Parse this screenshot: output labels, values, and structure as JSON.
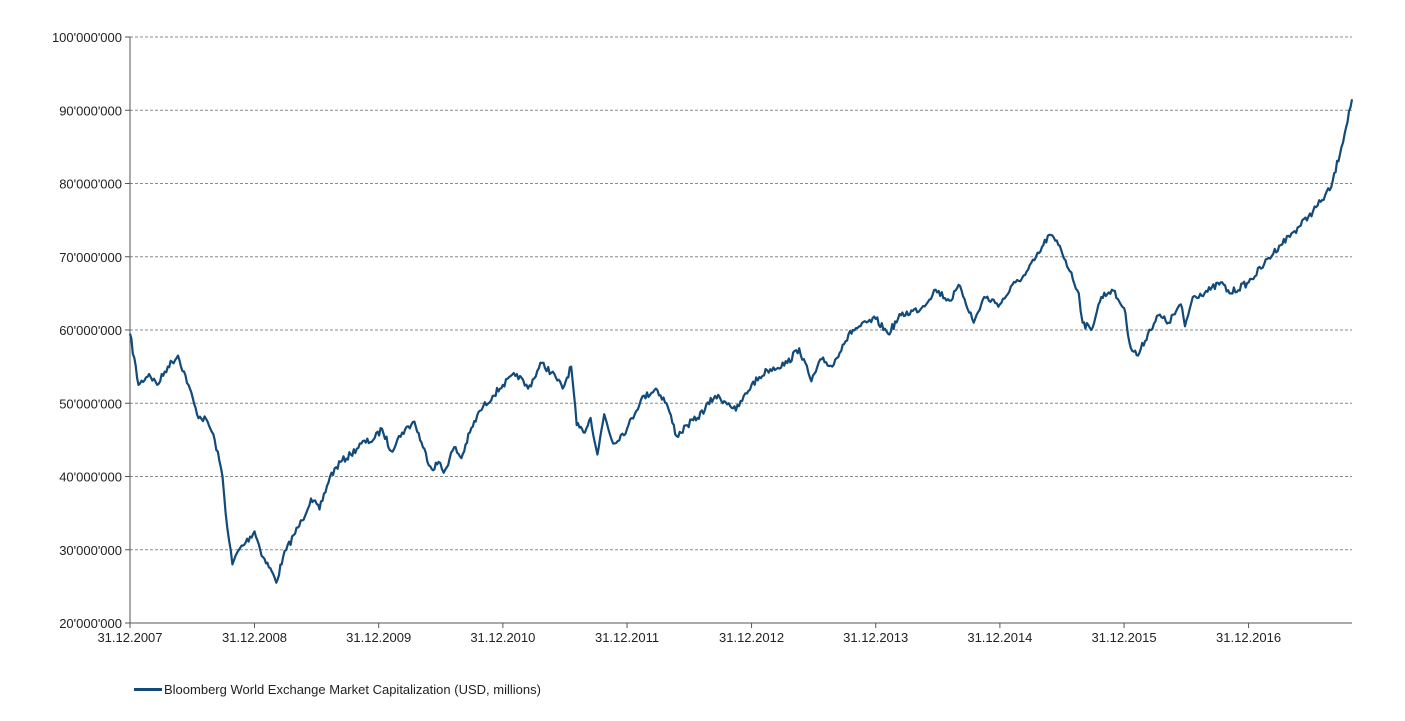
{
  "chart_data": {
    "type": "line",
    "title": "",
    "xlabel": "",
    "ylabel": "",
    "x_start": "2007-12-31",
    "x_end": "2017-10-31",
    "ylim": [
      20000000,
      100000000
    ],
    "y_ticks": [
      20000000,
      30000000,
      40000000,
      50000000,
      60000000,
      70000000,
      80000000,
      90000000,
      100000000
    ],
    "y_tick_labels": [
      "20'000'000",
      "30'000'000",
      "40'000'000",
      "50'000'000",
      "60'000'000",
      "70'000'000",
      "80'000'000",
      "90'000'000",
      "100'000'000"
    ],
    "x_ticks": [
      "2007-12-31",
      "2008-12-31",
      "2009-12-31",
      "2010-12-31",
      "2011-12-31",
      "2012-12-31",
      "2013-12-31",
      "2014-12-31",
      "2015-12-31",
      "2016-12-31"
    ],
    "x_tick_labels": [
      "31.12.2007",
      "31.12.2008",
      "31.12.2009",
      "31.12.2010",
      "31.12.2011",
      "31.12.2012",
      "31.12.2013",
      "31.12.2014",
      "31.12.2015",
      "31.12.2016"
    ],
    "grid": "horizontal dashed",
    "legend_position": "bottom-left",
    "series": [
      {
        "name": "Bloomberg World Exchange Market Capitalization (USD, millions)",
        "color": "#124a7a",
        "points": [
          [
            "2007-12-31",
            59500000
          ],
          [
            "2008-01-25",
            52500000
          ],
          [
            "2008-02-25",
            54000000
          ],
          [
            "2008-03-20",
            52500000
          ],
          [
            "2008-04-20",
            55000000
          ],
          [
            "2008-05-20",
            56500000
          ],
          [
            "2008-06-20",
            52500000
          ],
          [
            "2008-07-15",
            48500000
          ],
          [
            "2008-08-15",
            47500000
          ],
          [
            "2008-09-05",
            45000000
          ],
          [
            "2008-09-28",
            40000000
          ],
          [
            "2008-10-12",
            33000000
          ],
          [
            "2008-10-27",
            28000000
          ],
          [
            "2008-11-15",
            30000000
          ],
          [
            "2008-12-05",
            31000000
          ],
          [
            "2008-12-31",
            32500000
          ],
          [
            "2009-01-25",
            29000000
          ],
          [
            "2009-02-20",
            27000000
          ],
          [
            "2009-03-05",
            25500000
          ],
          [
            "2009-03-25",
            29000000
          ],
          [
            "2009-04-25",
            32000000
          ],
          [
            "2009-05-20",
            34000000
          ],
          [
            "2009-06-15",
            37000000
          ],
          [
            "2009-07-10",
            35500000
          ],
          [
            "2009-08-10",
            40000000
          ],
          [
            "2009-09-10",
            42000000
          ],
          [
            "2009-10-10",
            43000000
          ],
          [
            "2009-11-10",
            44500000
          ],
          [
            "2009-12-15",
            45000000
          ],
          [
            "2010-01-10",
            46500000
          ],
          [
            "2010-02-05",
            43500000
          ],
          [
            "2010-03-10",
            46000000
          ],
          [
            "2010-04-15",
            47500000
          ],
          [
            "2010-05-10",
            44000000
          ],
          [
            "2010-06-05",
            41000000
          ],
          [
            "2010-06-25",
            42000000
          ],
          [
            "2010-07-10",
            40500000
          ],
          [
            "2010-08-10",
            44000000
          ],
          [
            "2010-08-31",
            42500000
          ],
          [
            "2010-09-25",
            46000000
          ],
          [
            "2010-10-25",
            49000000
          ],
          [
            "2010-12-01",
            51000000
          ],
          [
            "2010-12-31",
            52500000
          ],
          [
            "2011-02-10",
            54000000
          ],
          [
            "2011-03-15",
            52000000
          ],
          [
            "2011-04-25",
            55500000
          ],
          [
            "2011-06-05",
            53500000
          ],
          [
            "2011-06-25",
            52000000
          ],
          [
            "2011-07-20",
            55000000
          ],
          [
            "2011-08-05",
            47000000
          ],
          [
            "2011-08-25",
            46000000
          ],
          [
            "2011-09-15",
            48000000
          ],
          [
            "2011-10-05",
            43000000
          ],
          [
            "2011-10-25",
            48500000
          ],
          [
            "2011-11-20",
            44500000
          ],
          [
            "2011-12-31",
            46500000
          ],
          [
            "2012-02-10",
            50500000
          ],
          [
            "2012-03-25",
            52000000
          ],
          [
            "2012-04-25",
            50000000
          ],
          [
            "2012-05-25",
            45500000
          ],
          [
            "2012-06-25",
            47000000
          ],
          [
            "2012-07-25",
            48000000
          ],
          [
            "2012-09-15",
            51000000
          ],
          [
            "2012-10-25",
            50000000
          ],
          [
            "2012-11-15",
            49000000
          ],
          [
            "2012-12-31",
            52500000
          ],
          [
            "2013-02-15",
            54500000
          ],
          [
            "2013-04-15",
            55500000
          ],
          [
            "2013-05-20",
            57500000
          ],
          [
            "2013-06-25",
            53000000
          ],
          [
            "2013-07-25",
            56000000
          ],
          [
            "2013-08-25",
            55000000
          ],
          [
            "2013-09-25",
            58000000
          ],
          [
            "2013-10-25",
            60000000
          ],
          [
            "2013-12-31",
            61500000
          ],
          [
            "2014-02-05",
            59500000
          ],
          [
            "2014-03-15",
            62000000
          ],
          [
            "2014-05-15",
            63000000
          ],
          [
            "2014-06-25",
            65500000
          ],
          [
            "2014-08-05",
            64000000
          ],
          [
            "2014-09-05",
            66000000
          ],
          [
            "2014-10-15",
            61000000
          ],
          [
            "2014-11-15",
            64500000
          ],
          [
            "2014-12-31",
            63500000
          ],
          [
            "2015-02-15",
            66500000
          ],
          [
            "2015-03-15",
            67500000
          ],
          [
            "2015-04-25",
            70500000
          ],
          [
            "2015-05-25",
            73000000
          ],
          [
            "2015-06-25",
            71500000
          ],
          [
            "2015-07-25",
            68000000
          ],
          [
            "2015-08-20",
            65000000
          ],
          [
            "2015-08-31",
            61000000
          ],
          [
            "2015-09-25",
            60000000
          ],
          [
            "2015-10-25",
            64500000
          ],
          [
            "2015-11-25",
            65500000
          ],
          [
            "2015-12-31",
            63000000
          ],
          [
            "2016-01-20",
            57500000
          ],
          [
            "2016-02-10",
            56500000
          ],
          [
            "2016-03-10",
            59500000
          ],
          [
            "2016-04-10",
            62000000
          ],
          [
            "2016-05-10",
            61000000
          ],
          [
            "2016-06-15",
            63500000
          ],
          [
            "2016-06-27",
            60500000
          ],
          [
            "2016-07-20",
            64500000
          ],
          [
            "2016-09-10",
            65500000
          ],
          [
            "2016-10-10",
            66500000
          ],
          [
            "2016-11-05",
            65000000
          ],
          [
            "2016-12-31",
            66500000
          ],
          [
            "2017-02-15",
            69000000
          ],
          [
            "2017-03-31",
            71500000
          ],
          [
            "2017-05-15",
            73500000
          ],
          [
            "2017-06-25",
            75500000
          ],
          [
            "2017-07-31",
            77500000
          ],
          [
            "2017-08-31",
            79500000
          ],
          [
            "2017-09-30",
            85000000
          ],
          [
            "2017-10-31",
            91500000
          ]
        ]
      }
    ]
  }
}
